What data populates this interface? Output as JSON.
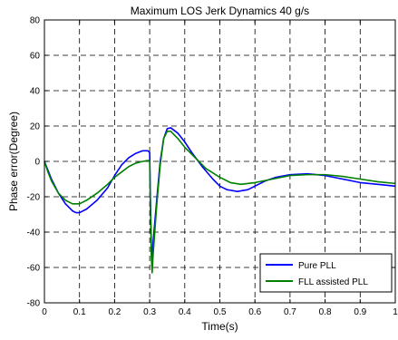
{
  "chart_data": {
    "type": "line",
    "title": "Maximum LOS Jerk Dynamics 40 g/s",
    "xlabel": "Time(s)",
    "ylabel": "Phase error(Degree)",
    "xlim": [
      0,
      1
    ],
    "ylim": [
      -80,
      80
    ],
    "x_ticks": [
      0,
      0.1,
      0.2,
      0.3,
      0.4,
      0.5,
      0.6,
      0.7,
      0.8,
      0.9,
      1
    ],
    "x_tick_labels": [
      "0",
      "0.1",
      "0.2",
      "0.3",
      "0.4",
      "0.5",
      "0.6",
      "0.7",
      "0.8",
      "0.9",
      "1"
    ],
    "y_ticks": [
      -80,
      -60,
      -40,
      -20,
      0,
      20,
      40,
      60,
      80
    ],
    "y_tick_labels": [
      "-80",
      "-60",
      "-40",
      "-20",
      "0",
      "20",
      "40",
      "60",
      "80"
    ],
    "grid": true,
    "legend_position": "bottom-right",
    "series": [
      {
        "name": "Pure PLL",
        "color": "#0000ff",
        "points": [
          [
            0,
            0
          ],
          [
            0.01,
            -5
          ],
          [
            0.02,
            -10
          ],
          [
            0.04,
            -18
          ],
          [
            0.06,
            -24
          ],
          [
            0.08,
            -28
          ],
          [
            0.09,
            -29
          ],
          [
            0.1,
            -29
          ],
          [
            0.12,
            -27
          ],
          [
            0.15,
            -22
          ],
          [
            0.18,
            -15
          ],
          [
            0.2,
            -8
          ],
          [
            0.22,
            -2
          ],
          [
            0.24,
            2
          ],
          [
            0.26,
            4.5
          ],
          [
            0.28,
            6
          ],
          [
            0.295,
            6
          ],
          [
            0.3,
            5
          ],
          [
            0.302,
            -20
          ],
          [
            0.305,
            -50
          ],
          [
            0.307,
            -58
          ],
          [
            0.31,
            -45
          ],
          [
            0.32,
            -22
          ],
          [
            0.33,
            0
          ],
          [
            0.34,
            13
          ],
          [
            0.35,
            18.5
          ],
          [
            0.36,
            19
          ],
          [
            0.38,
            16
          ],
          [
            0.4,
            11
          ],
          [
            0.42,
            5
          ],
          [
            0.45,
            -3
          ],
          [
            0.48,
            -10
          ],
          [
            0.5,
            -14
          ],
          [
            0.52,
            -16
          ],
          [
            0.55,
            -17
          ],
          [
            0.58,
            -16
          ],
          [
            0.6,
            -14
          ],
          [
            0.63,
            -11
          ],
          [
            0.66,
            -9
          ],
          [
            0.7,
            -7.5
          ],
          [
            0.75,
            -7
          ],
          [
            0.8,
            -8
          ],
          [
            0.85,
            -10
          ],
          [
            0.9,
            -12
          ],
          [
            0.95,
            -13
          ],
          [
            1,
            -14
          ]
        ]
      },
      {
        "name": "FLL assisted PLL",
        "color": "#008000",
        "points": [
          [
            0,
            0
          ],
          [
            0.01,
            -6
          ],
          [
            0.02,
            -11
          ],
          [
            0.04,
            -18
          ],
          [
            0.06,
            -22
          ],
          [
            0.08,
            -24
          ],
          [
            0.1,
            -24
          ],
          [
            0.12,
            -22
          ],
          [
            0.15,
            -18
          ],
          [
            0.18,
            -13
          ],
          [
            0.2,
            -9
          ],
          [
            0.22,
            -6
          ],
          [
            0.24,
            -3
          ],
          [
            0.26,
            -1
          ],
          [
            0.28,
            0
          ],
          [
            0.295,
            0.5
          ],
          [
            0.3,
            0
          ],
          [
            0.302,
            -25
          ],
          [
            0.305,
            -55
          ],
          [
            0.307,
            -63
          ],
          [
            0.31,
            -52
          ],
          [
            0.32,
            -25
          ],
          [
            0.33,
            -2
          ],
          [
            0.34,
            13
          ],
          [
            0.35,
            17
          ],
          [
            0.36,
            17
          ],
          [
            0.38,
            13
          ],
          [
            0.4,
            8
          ],
          [
            0.43,
            2
          ],
          [
            0.46,
            -4
          ],
          [
            0.5,
            -9
          ],
          [
            0.53,
            -12
          ],
          [
            0.56,
            -13
          ],
          [
            0.6,
            -12
          ],
          [
            0.65,
            -10
          ],
          [
            0.7,
            -8
          ],
          [
            0.75,
            -7.5
          ],
          [
            0.8,
            -7.5
          ],
          [
            0.85,
            -8.5
          ],
          [
            0.9,
            -10
          ],
          [
            0.95,
            -11.5
          ],
          [
            1,
            -12.5
          ]
        ]
      }
    ]
  }
}
